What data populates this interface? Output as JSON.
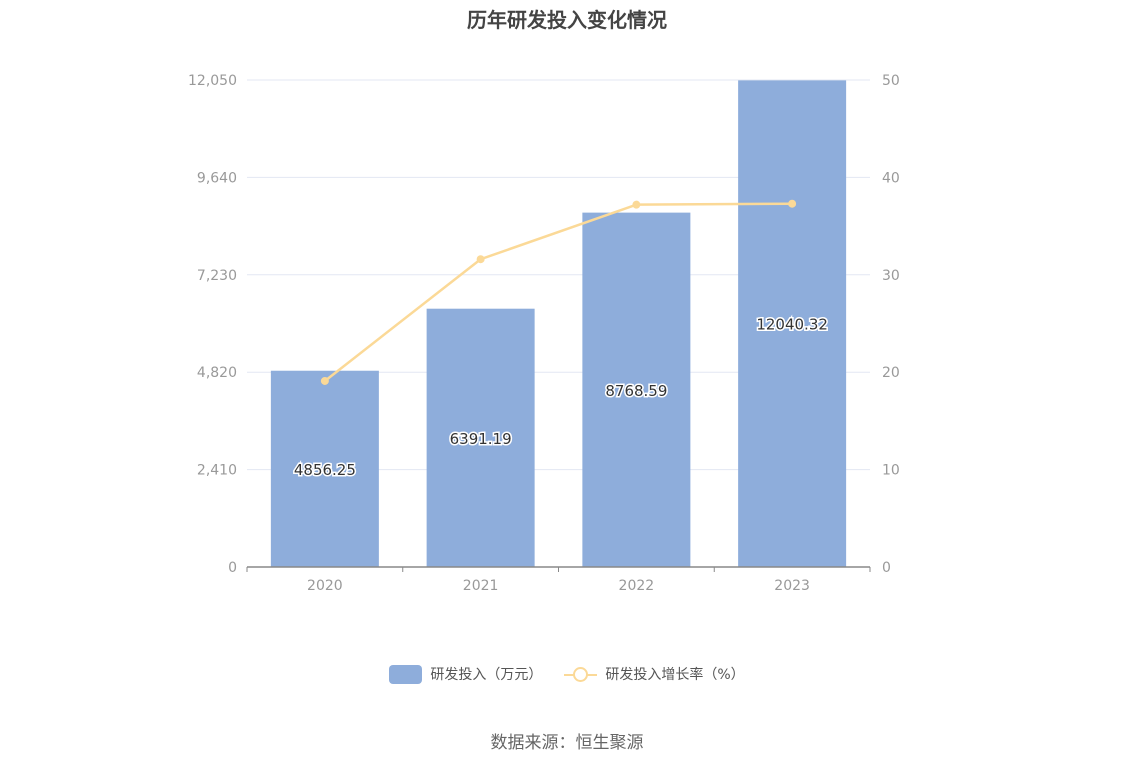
{
  "colors": {
    "bar": "#8eaddb",
    "line": "#fbd997",
    "grid": "#e3e7f3",
    "axis": "#888888",
    "tick_text": "#999999"
  },
  "chart_data": {
    "type": "bar",
    "title": "历年研发投入变化情况",
    "categories": [
      "2020",
      "2021",
      "2022",
      "2023"
    ],
    "series": [
      {
        "name": "研发投入（万元）",
        "type": "bar",
        "axis": "left",
        "values": [
          4856.25,
          6391.19,
          8768.59,
          12040.32
        ],
        "labels": [
          "4856.25",
          "6391.19",
          "8768.59",
          "12040.32"
        ]
      },
      {
        "name": "研发投入增长率（%）",
        "type": "line",
        "axis": "right",
        "values": [
          19.1,
          31.6,
          37.2,
          37.3
        ]
      }
    ],
    "y_left": {
      "min": 0,
      "max": 12050,
      "ticks": [
        0,
        2410,
        4820,
        7230,
        9640,
        12050
      ],
      "tick_labels": [
        "0",
        "2,410",
        "4,820",
        "7,230",
        "9,640",
        "12,050"
      ]
    },
    "y_right": {
      "min": 0,
      "max": 50,
      "ticks": [
        0,
        10,
        20,
        30,
        40,
        50
      ],
      "tick_labels": [
        "0",
        "10",
        "20",
        "30",
        "40",
        "50"
      ]
    },
    "grid": true,
    "legend_position": "bottom-center"
  },
  "source": "数据来源：恒生聚源"
}
